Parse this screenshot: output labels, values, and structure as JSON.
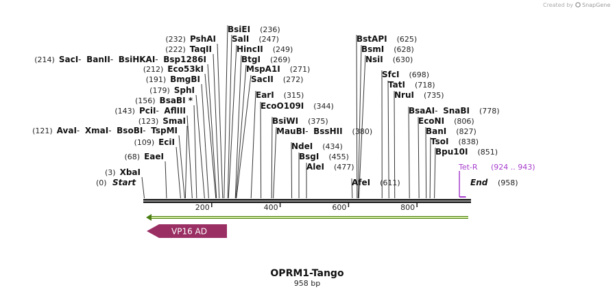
{
  "credit": {
    "prefix": "Created by",
    "brand": "SnapGene"
  },
  "map": {
    "length": 958,
    "title": "OPRM1-Tango",
    "subtitle": "958 bp",
    "ticks": [
      {
        "value": 200,
        "label": "200"
      },
      {
        "value": 400,
        "label": "400"
      },
      {
        "value": 600,
        "label": "600"
      },
      {
        "value": 800,
        "label": "800"
      }
    ],
    "start": {
      "label": "Start",
      "pos": "(0)"
    },
    "end": {
      "label": "End",
      "pos": "(958)"
    },
    "features": [
      {
        "name": "Tet-R",
        "range": "(924 .. 943)",
        "start": 924,
        "end": 943,
        "color": "#a63ccc"
      }
    ],
    "arrows": [
      {
        "name": "green-arrow",
        "start": 1,
        "end": 958,
        "color": "#9acd32"
      },
      {
        "name": "VP16 AD",
        "start": 1,
        "end": 246,
        "color": "#9a2f63"
      }
    ],
    "sites": [
      {
        "names": [
          "XbaI"
        ],
        "pos": "(3)",
        "cuts": [
          3
        ]
      },
      {
        "names": [
          "EaeI"
        ],
        "pos": "(68)",
        "cuts": [
          68
        ]
      },
      {
        "names": [
          "EciI"
        ],
        "pos": "(109)",
        "cuts": [
          109
        ]
      },
      {
        "names": [
          "AvaI",
          "XmaI",
          "BsoBI",
          "TspMI"
        ],
        "pos": "(121)",
        "cuts": [
          121
        ]
      },
      {
        "names": [
          "SmaI"
        ],
        "pos": "(123)",
        "cuts": [
          123
        ]
      },
      {
        "names": [
          "PciI",
          "AflIII"
        ],
        "pos": "(143)",
        "cuts": [
          143
        ]
      },
      {
        "names": [
          "BsaBI *"
        ],
        "pos": "(156)",
        "cuts": [
          156
        ]
      },
      {
        "names": [
          "SphI"
        ],
        "pos": "(179)",
        "cuts": [
          179
        ]
      },
      {
        "names": [
          "BmgBI"
        ],
        "pos": "(191)",
        "cuts": [
          191
        ]
      },
      {
        "names": [
          "Eco53kI"
        ],
        "pos": "(212)",
        "cuts": [
          212
        ]
      },
      {
        "names": [
          "SacI",
          "BanII",
          "BsiHKAI",
          "Bsp1286I"
        ],
        "pos": "(214)",
        "cuts": [
          214
        ]
      },
      {
        "names": [
          "TaqII"
        ],
        "pos": "(222)",
        "cuts": [
          222
        ]
      },
      {
        "names": [
          "PshAI"
        ],
        "pos": "(232)",
        "cuts": [
          232
        ]
      },
      {
        "names": [
          "BsiEI"
        ],
        "pos": "(236)",
        "cuts": [
          236
        ]
      },
      {
        "names": [
          "SalI"
        ],
        "pos": "(247)",
        "cuts": [
          247
        ]
      },
      {
        "names": [
          "HincII"
        ],
        "pos": "(249)",
        "cuts": [
          249
        ]
      },
      {
        "names": [
          "BtgI"
        ],
        "pos": "(269)",
        "cuts": [
          269
        ]
      },
      {
        "names": [
          "MspA1I"
        ],
        "pos": "(271)",
        "cuts": [
          271
        ]
      },
      {
        "names": [
          "SacII"
        ],
        "pos": "(272)",
        "cuts": [
          272
        ]
      },
      {
        "names": [
          "EarI"
        ],
        "pos": "(315)",
        "cuts": [
          315
        ]
      },
      {
        "names": [
          "EcoO109I"
        ],
        "pos": "(344)",
        "cuts": [
          344
        ]
      },
      {
        "names": [
          "BsiWI"
        ],
        "pos": "(375)",
        "cuts": [
          375
        ]
      },
      {
        "names": [
          "MauBI",
          "BssHII"
        ],
        "pos": "(380)",
        "cuts": [
          380
        ]
      },
      {
        "names": [
          "NdeI"
        ],
        "pos": "(434)",
        "cuts": [
          434
        ]
      },
      {
        "names": [
          "BsgI"
        ],
        "pos": "(455)",
        "cuts": [
          455
        ]
      },
      {
        "names": [
          "AleI"
        ],
        "pos": "(477)",
        "cuts": [
          477
        ]
      },
      {
        "names": [
          "AfeI"
        ],
        "pos": "(611)",
        "cuts": [
          611
        ]
      },
      {
        "names": [
          "BstAPI"
        ],
        "pos": "(625)",
        "cuts": [
          625
        ]
      },
      {
        "names": [
          "BsmI"
        ],
        "pos": "(628)",
        "cuts": [
          628
        ]
      },
      {
        "names": [
          "NsiI"
        ],
        "pos": "(630)",
        "cuts": [
          630
        ]
      },
      {
        "names": [
          "SfcI"
        ],
        "pos": "(698)",
        "cuts": [
          698
        ]
      },
      {
        "names": [
          "TatI"
        ],
        "pos": "(718)",
        "cuts": [
          718
        ]
      },
      {
        "names": [
          "NruI"
        ],
        "pos": "(735)",
        "cuts": [
          735
        ]
      },
      {
        "names": [
          "BsaAI",
          "SnaBI"
        ],
        "pos": "(778)",
        "cuts": [
          778
        ]
      },
      {
        "names": [
          "EcoNI"
        ],
        "pos": "(806)",
        "cuts": [
          806
        ]
      },
      {
        "names": [
          "BanI"
        ],
        "pos": "(827)",
        "cuts": [
          827
        ]
      },
      {
        "names": [
          "TsoI"
        ],
        "pos": "(838)",
        "cuts": [
          838
        ]
      },
      {
        "names": [
          "Bpu10I"
        ],
        "pos": "(851)",
        "cuts": [
          851
        ]
      }
    ]
  }
}
